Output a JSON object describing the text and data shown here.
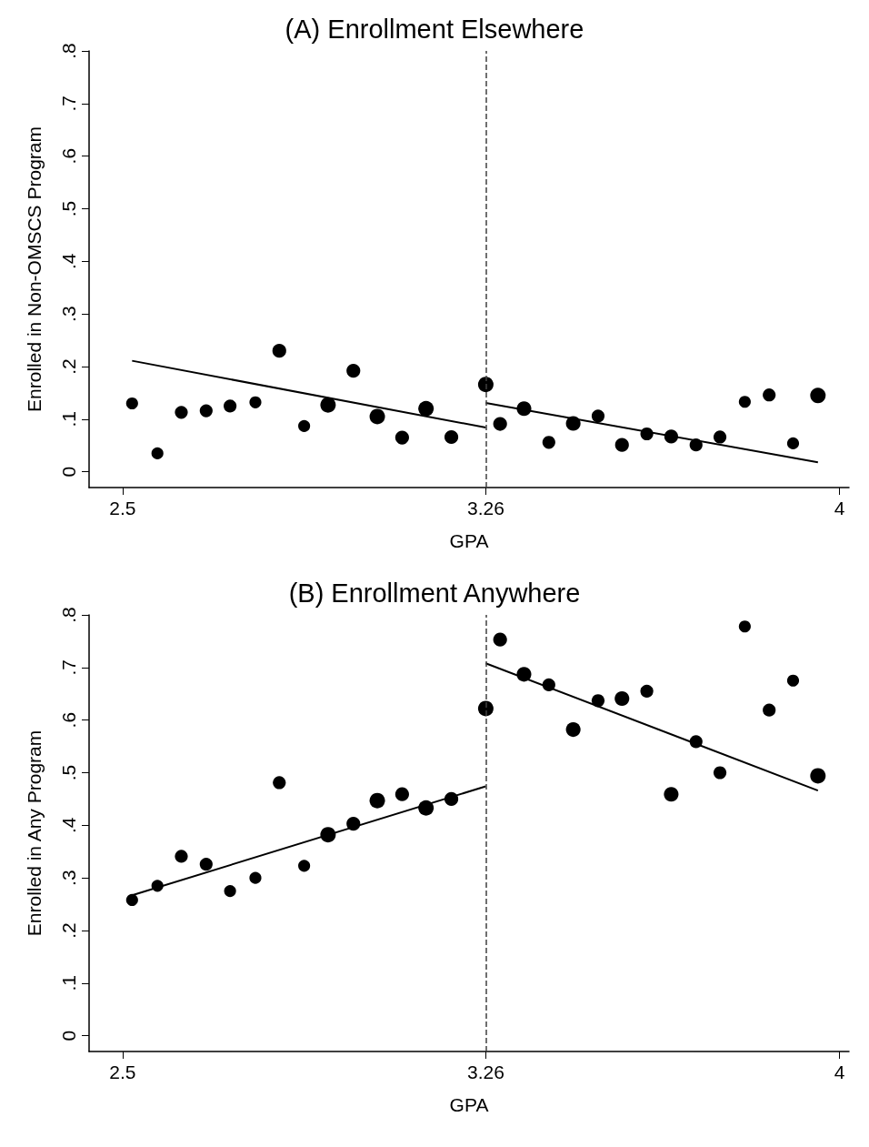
{
  "chart_data": [
    {
      "type": "bubble",
      "title": "(A) Enrollment Elsewhere",
      "xlabel": "GPA",
      "ylabel": "Enrolled in Non-OMSCS Program",
      "xlim": [
        2.43,
        4.02
      ],
      "ylim": [
        -0.03,
        0.8
      ],
      "xticks": [
        2.5,
        3.26,
        4
      ],
      "yticks": [
        {
          "value": 0,
          "label": "0"
        },
        {
          "value": 0.1,
          "label": ".1"
        },
        {
          "value": 0.2,
          "label": ".2"
        },
        {
          "value": 0.3,
          "label": ".3"
        },
        {
          "value": 0.4,
          "label": ".4"
        },
        {
          "value": 0.5,
          "label": ".5"
        },
        {
          "value": 0.6,
          "label": ".6"
        },
        {
          "value": 0.7,
          "label": ".7"
        },
        {
          "value": 0.8,
          "label": ".8"
        }
      ],
      "grid": false,
      "ref_lines": [
        {
          "axis": "x",
          "value": 3.26,
          "color": "#404040",
          "line_style": "dashed"
        }
      ],
      "series": [
        {
          "marker": "circle",
          "color": "#000000",
          "x": [
            2.52,
            2.573,
            2.623,
            2.675,
            2.725,
            2.778,
            2.828,
            2.88,
            2.93,
            2.983,
            3.033,
            3.085,
            3.135,
            3.188,
            3.26,
            3.29,
            3.34,
            3.392,
            3.443,
            3.495,
            3.545,
            3.597,
            3.648,
            3.7,
            3.75,
            3.802,
            3.853,
            3.903,
            3.955
          ],
          "values": [
            0.13,
            0.035,
            0.113,
            0.116,
            0.125,
            0.132,
            0.23,
            0.087,
            0.127,
            0.192,
            0.105,
            0.065,
            0.12,
            0.066,
            0.166,
            0.091,
            0.12,
            0.056,
            0.092,
            0.106,
            0.051,
            0.072,
            0.067,
            0.051,
            0.066,
            0.133,
            0.146,
            0.054,
            0.145
          ],
          "sizes": [
            0.6,
            0.6,
            0.7,
            0.7,
            0.7,
            0.6,
            0.8,
            0.6,
            1,
            0.8,
            1,
            0.8,
            1,
            0.8,
            1,
            0.8,
            0.9,
            0.7,
            0.9,
            0.7,
            0.8,
            0.7,
            0.8,
            0.7,
            0.7,
            0.6,
            0.7,
            0.6,
            1
          ]
        },
        {
          "type": "line",
          "marker": "none",
          "color": "#000000",
          "x": [
            2.52,
            3.26
          ],
          "values": [
            0.211,
            0.084
          ]
        },
        {
          "type": "line",
          "marker": "none",
          "color": "#000000",
          "x": [
            3.26,
            3.955
          ],
          "values": [
            0.131,
            0.018
          ]
        }
      ]
    },
    {
      "type": "bubble",
      "title": "(B) Enrollment Anywhere",
      "xlabel": "GPA",
      "ylabel": "Enrolled in Any Program",
      "xlim": [
        2.43,
        4.02
      ],
      "ylim": [
        -0.03,
        0.8
      ],
      "xticks": [
        2.5,
        3.26,
        4
      ],
      "yticks": [
        {
          "value": 0,
          "label": "0"
        },
        {
          "value": 0.1,
          "label": ".1"
        },
        {
          "value": 0.2,
          "label": ".2"
        },
        {
          "value": 0.3,
          "label": ".3"
        },
        {
          "value": 0.4,
          "label": ".4"
        },
        {
          "value": 0.5,
          "label": ".5"
        },
        {
          "value": 0.6,
          "label": ".6"
        },
        {
          "value": 0.7,
          "label": ".7"
        },
        {
          "value": 0.8,
          "label": ".8"
        }
      ],
      "grid": false,
      "ref_lines": [
        {
          "axis": "x",
          "value": 3.26,
          "color": "#404040",
          "line_style": "dashed"
        }
      ],
      "series": [
        {
          "marker": "circle",
          "color": "#000000",
          "x": [
            2.52,
            2.573,
            2.623,
            2.675,
            2.725,
            2.778,
            2.828,
            2.88,
            2.93,
            2.983,
            3.033,
            3.085,
            3.135,
            3.188,
            3.26,
            3.29,
            3.34,
            3.392,
            3.443,
            3.495,
            3.545,
            3.597,
            3.648,
            3.7,
            3.75,
            3.802,
            3.853,
            3.903,
            3.955
          ],
          "values": [
            0.258,
            0.285,
            0.341,
            0.326,
            0.275,
            0.3,
            0.481,
            0.323,
            0.382,
            0.403,
            0.447,
            0.459,
            0.433,
            0.45,
            0.622,
            0.753,
            0.687,
            0.667,
            0.582,
            0.637,
            0.641,
            0.655,
            0.459,
            0.559,
            0.5,
            0.778,
            0.619,
            0.675,
            0.494
          ],
          "sizes": [
            0.6,
            0.6,
            0.7,
            0.7,
            0.6,
            0.6,
            0.7,
            0.6,
            1,
            0.8,
            1,
            0.8,
            1,
            0.8,
            1,
            0.8,
            0.9,
            0.7,
            0.9,
            0.7,
            0.9,
            0.7,
            0.9,
            0.7,
            0.7,
            0.6,
            0.7,
            0.6,
            1
          ]
        },
        {
          "type": "line",
          "marker": "none",
          "color": "#000000",
          "x": [
            2.52,
            3.26
          ],
          "values": [
            0.267,
            0.474
          ]
        },
        {
          "type": "line",
          "marker": "none",
          "color": "#000000",
          "x": [
            3.26,
            3.955
          ],
          "values": [
            0.708,
            0.466
          ]
        }
      ]
    }
  ]
}
